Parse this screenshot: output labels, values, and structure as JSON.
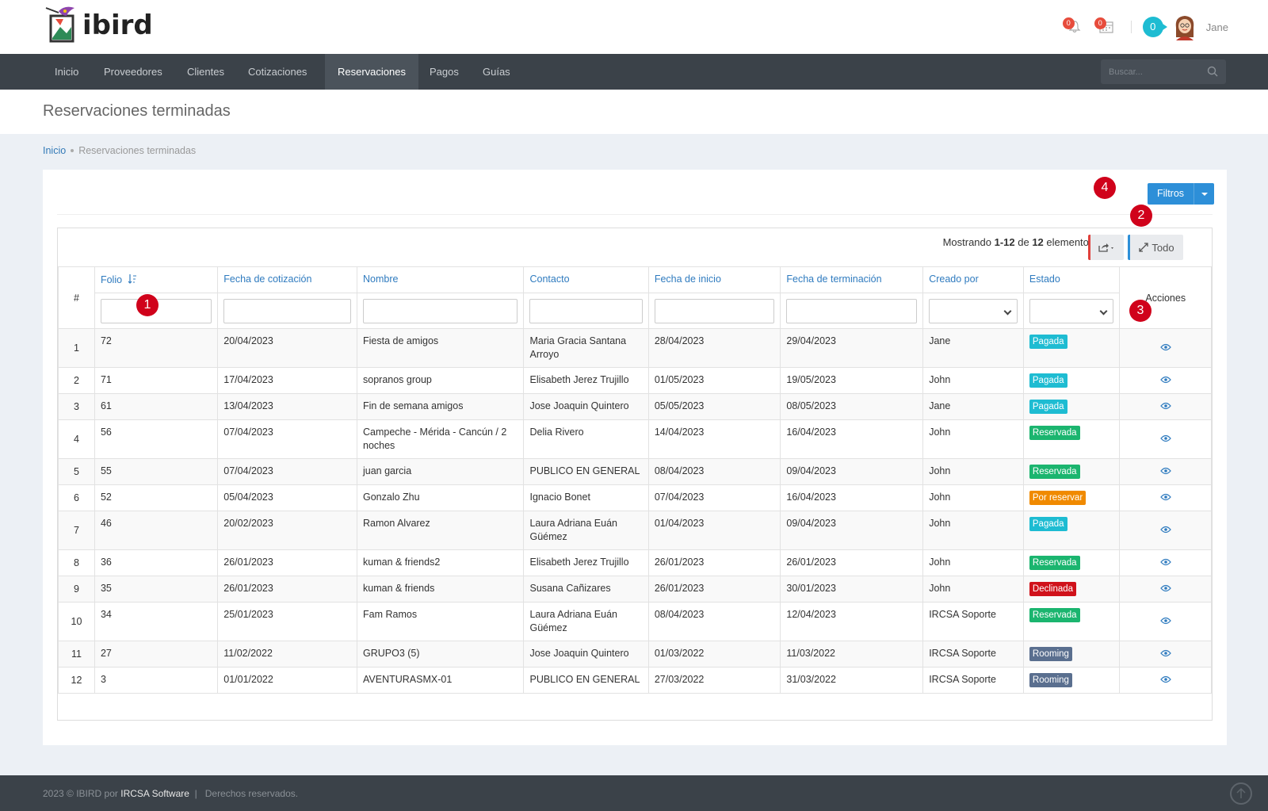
{
  "brand": {
    "name": "ibird"
  },
  "header": {
    "notif_count": "0",
    "calendar_count": "0",
    "online_count": "0",
    "user_name": "Jane"
  },
  "nav": {
    "items": [
      "Inicio",
      "Proveedores",
      "Clientes",
      "Cotizaciones",
      "Reservaciones",
      "Pagos",
      "Guías"
    ],
    "active": "Reservaciones",
    "search_placeholder": "Buscar..."
  },
  "page": {
    "title": "Reservaciones terminadas",
    "breadcrumb_home": "Inicio",
    "breadcrumb_current": "Reservaciones terminadas"
  },
  "toolbar": {
    "filter_label": "Filtros",
    "summary_prefix": "Mostrando ",
    "summary_range": "1-12",
    "summary_mid": " de ",
    "summary_total": "12",
    "summary_suffix": " elementos.",
    "todo_label": "Todo"
  },
  "table": {
    "headers": {
      "num": "#",
      "folio": "Folio",
      "fecha_cot": "Fecha de cotización",
      "nombre": "Nombre",
      "contacto": "Contacto",
      "fecha_ini": "Fecha de inicio",
      "fecha_term": "Fecha de terminación",
      "creado": "Creado por",
      "estado": "Estado",
      "acciones": "Acciones"
    },
    "rows": [
      {
        "n": "1",
        "folio": "72",
        "fcot": "20/04/2023",
        "nombre": "Fiesta de amigos",
        "contacto": "Maria Gracia Santana Arroyo",
        "fini": "28/04/2023",
        "fter": "29/04/2023",
        "creado": "Jane",
        "estado": "Pagada"
      },
      {
        "n": "2",
        "folio": "71",
        "fcot": "17/04/2023",
        "nombre": "sopranos group",
        "contacto": "Elisabeth Jerez Trujillo",
        "fini": "01/05/2023",
        "fter": "19/05/2023",
        "creado": "John",
        "estado": "Pagada"
      },
      {
        "n": "3",
        "folio": "61",
        "fcot": "13/04/2023",
        "nombre": "Fin de semana amigos",
        "contacto": "Jose Joaquin Quintero",
        "fini": "05/05/2023",
        "fter": "08/05/2023",
        "creado": "Jane",
        "estado": "Pagada"
      },
      {
        "n": "4",
        "folio": "56",
        "fcot": "07/04/2023",
        "nombre": "Campeche - Mérida - Cancún / 2 noches",
        "contacto": "Delia Rivero",
        "fini": "14/04/2023",
        "fter": "16/04/2023",
        "creado": "John",
        "estado": "Reservada"
      },
      {
        "n": "5",
        "folio": "55",
        "fcot": "07/04/2023",
        "nombre": "juan garcia",
        "contacto": "PUBLICO EN GENERAL",
        "fini": "08/04/2023",
        "fter": "09/04/2023",
        "creado": "John",
        "estado": "Reservada"
      },
      {
        "n": "6",
        "folio": "52",
        "fcot": "05/04/2023",
        "nombre": "Gonzalo Zhu",
        "contacto": "Ignacio Bonet",
        "fini": "07/04/2023",
        "fter": "16/04/2023",
        "creado": "John",
        "estado": "Por reservar"
      },
      {
        "n": "7",
        "folio": "46",
        "fcot": "20/02/2023",
        "nombre": "Ramon Alvarez",
        "contacto": "Laura Adriana Euán Güémez",
        "fini": "01/04/2023",
        "fter": "09/04/2023",
        "creado": "John",
        "estado": "Pagada"
      },
      {
        "n": "8",
        "folio": "36",
        "fcot": "26/01/2023",
        "nombre": "kuman & friends2",
        "contacto": "Elisabeth Jerez Trujillo",
        "fini": "26/01/2023",
        "fter": "26/01/2023",
        "creado": "John",
        "estado": "Reservada"
      },
      {
        "n": "9",
        "folio": "35",
        "fcot": "26/01/2023",
        "nombre": "kuman & friends",
        "contacto": "Susana Cañizares",
        "fini": "26/01/2023",
        "fter": "30/01/2023",
        "creado": "John",
        "estado": "Declinada"
      },
      {
        "n": "10",
        "folio": "34",
        "fcot": "25/01/2023",
        "nombre": "Fam Ramos",
        "contacto": "Laura Adriana Euán Güémez",
        "fini": "08/04/2023",
        "fter": "12/04/2023",
        "creado": "IRCSA Soporte",
        "estado": "Reservada"
      },
      {
        "n": "11",
        "folio": "27",
        "fcot": "11/02/2022",
        "nombre": "GRUPO3 (5)",
        "contacto": "Jose Joaquin Quintero",
        "fini": "01/03/2022",
        "fter": "11/03/2022",
        "creado": "IRCSA Soporte",
        "estado": "Rooming"
      },
      {
        "n": "12",
        "folio": "3",
        "fcot": "01/01/2022",
        "nombre": "AVENTURASMX-01",
        "contacto": "PUBLICO EN GENERAL",
        "fini": "27/03/2022",
        "fter": "31/03/2022",
        "creado": "IRCSA Soporte",
        "estado": "Rooming"
      }
    ]
  },
  "status_colors": {
    "Pagada": "#1ebcd2",
    "Reservada": "#1bb56f",
    "Por reservar": "#f08a00",
    "Declinada": "#d0121b",
    "Rooming": "#5a6f8f"
  },
  "markers": [
    "1",
    "2",
    "3",
    "4"
  ],
  "footer": {
    "prefix": "2023 © IBIRD por ",
    "brand": "IRCSA Software",
    "suffix": "  |   Derechos reservados."
  }
}
